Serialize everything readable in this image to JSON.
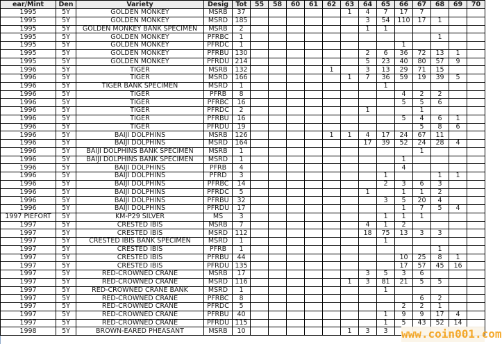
{
  "columns": [
    "ear/Mint",
    "Den",
    "Variety",
    "Desig",
    "Tot",
    "55",
    "58",
    "60",
    "61",
    "62",
    "63",
    "64",
    "65",
    "66",
    "67",
    "68",
    "69",
    "70"
  ],
  "rows": [
    [
      "1995",
      "5Y",
      "GOLDEN MONKEY",
      "MSRB",
      "37",
      [
        "",
        "",
        "",
        "",
        "",
        "1",
        "4",
        "7",
        "17",
        "7",
        "",
        "",
        ""
      ]
    ],
    [
      "1995",
      "5Y",
      "GOLDEN MONKEY",
      "MSRD",
      "185",
      [
        "",
        "",
        "",
        "",
        "",
        "",
        "3",
        "54",
        "110",
        "17",
        "1",
        "",
        ""
      ]
    ],
    [
      "1995",
      "5Y",
      "GOLDEN MONKEY BANK SPECIMEN",
      "MSRB",
      "2",
      [
        "",
        "",
        "",
        "",
        "",
        "",
        "1",
        "1",
        "",
        "",
        "",
        "",
        ""
      ]
    ],
    [
      "1995",
      "5Y",
      "GOLDEN MONKEY",
      "PFRBC",
      "1",
      [
        "",
        "",
        "",
        "",
        "",
        "",
        "",
        "",
        "",
        "",
        "1",
        "",
        ""
      ]
    ],
    [
      "1995",
      "5Y",
      "GOLDEN MONKEY",
      "PFRDC",
      "1",
      [
        "",
        "",
        "",
        "",
        "",
        "",
        "",
        "",
        "1",
        "",
        "",
        "",
        ""
      ]
    ],
    [
      "1995",
      "5Y",
      "GOLDEN MONKEY",
      "PFRBU",
      "130",
      [
        "",
        "",
        "",
        "",
        "",
        "",
        "2",
        "6",
        "36",
        "72",
        "13",
        "1",
        ""
      ]
    ],
    [
      "1995",
      "5Y",
      "GOLDEN MONKEY",
      "PFRDU",
      "214",
      [
        "",
        "",
        "",
        "",
        "",
        "",
        "5",
        "23",
        "40",
        "80",
        "57",
        "9",
        ""
      ]
    ],
    [
      "1996",
      "5Y",
      "TIGER",
      "MSRB",
      "132",
      [
        "",
        "",
        "",
        "",
        "1",
        "",
        "3",
        "13",
        "29",
        "71",
        "15",
        "",
        ""
      ]
    ],
    [
      "1996",
      "5Y",
      "TIGER",
      "MSRD",
      "166",
      [
        "",
        "",
        "",
        "",
        "",
        "1",
        "7",
        "36",
        "59",
        "19",
        "39",
        "5",
        ""
      ]
    ],
    [
      "1996",
      "5Y",
      "TIGER BANK SPECIMEN",
      "MSRD",
      "1",
      [
        "",
        "",
        "",
        "",
        "",
        "",
        "",
        "1",
        "",
        "",
        "",
        "",
        ""
      ]
    ],
    [
      "1996",
      "5Y",
      "TIGER",
      "PFRB",
      "8",
      [
        "",
        "",
        "",
        "",
        "",
        "",
        "",
        "",
        "4",
        "2",
        "2",
        "",
        ""
      ]
    ],
    [
      "1996",
      "5Y",
      "TIGER",
      "PFRBC",
      "16",
      [
        "",
        "",
        "",
        "",
        "",
        "",
        "",
        "",
        "5",
        "5",
        "6",
        "",
        ""
      ]
    ],
    [
      "1996",
      "5Y",
      "TIGER",
      "PFRDC",
      "2",
      [
        "",
        "",
        "",
        "",
        "",
        "",
        "1",
        "",
        "",
        "1",
        "",
        "",
        ""
      ]
    ],
    [
      "1996",
      "5Y",
      "TIGER",
      "PFRBU",
      "16",
      [
        "",
        "",
        "",
        "",
        "",
        "",
        "",
        "",
        "5",
        "4",
        "6",
        "1",
        ""
      ]
    ],
    [
      "1996",
      "5Y",
      "TIGER",
      "PFRDU",
      "19",
      [
        "",
        "",
        "",
        "",
        "",
        "",
        "",
        "",
        "",
        "5",
        "8",
        "6",
        ""
      ]
    ],
    [
      "1996",
      "5Y",
      "BAIJI DOLPHINS",
      "MSRB",
      "126",
      [
        "",
        "",
        "",
        "",
        "1",
        "1",
        "4",
        "17",
        "24",
        "67",
        "11",
        "",
        ""
      ]
    ],
    [
      "1996",
      "5Y",
      "BAIJI DOLPHINS",
      "MSRD",
      "164",
      [
        "",
        "",
        "",
        "",
        "",
        "",
        "17",
        "39",
        "52",
        "24",
        "28",
        "4",
        ""
      ]
    ],
    [
      "1996",
      "5Y",
      "BAIJI DOLPHINS BANK SPECIMEN",
      "MSRB",
      "1",
      [
        "",
        "",
        "",
        "",
        "",
        "",
        "",
        "",
        "",
        "1",
        "",
        "",
        ""
      ]
    ],
    [
      "1996",
      "5Y",
      "BAIJI DOLPHINS BANK SPECIMEN",
      "MSRD",
      "1",
      [
        "",
        "",
        "",
        "",
        "",
        "",
        "",
        "",
        "1",
        "",
        "",
        "",
        ""
      ]
    ],
    [
      "1996",
      "5Y",
      "BAIJI DOLPHINS",
      "PFRB",
      "4",
      [
        "",
        "",
        "",
        "",
        "",
        "",
        "",
        "",
        "4",
        "",
        "",
        "",
        ""
      ]
    ],
    [
      "1996",
      "5Y",
      "BAIJI DOLPHINS",
      "PFRD",
      "3",
      [
        "",
        "",
        "",
        "",
        "",
        "",
        "",
        "1",
        "",
        "",
        "1",
        "1",
        ""
      ]
    ],
    [
      "1996",
      "5Y",
      "BAIJI DOLPHINS",
      "PFRBC",
      "14",
      [
        "",
        "",
        "",
        "",
        "",
        "",
        "",
        "2",
        "3",
        "6",
        "3",
        "",
        ""
      ]
    ],
    [
      "1996",
      "5Y",
      "BAIJI DOLPHINS",
      "PFRDC",
      "5",
      [
        "",
        "",
        "",
        "",
        "",
        "",
        "1",
        "",
        "1",
        "1",
        "2",
        "",
        ""
      ]
    ],
    [
      "1996",
      "5Y",
      "BAIJI DOLPHINS",
      "PFRBU",
      "32",
      [
        "",
        "",
        "",
        "",
        "",
        "",
        "",
        "3",
        "5",
        "20",
        "4",
        "",
        ""
      ]
    ],
    [
      "1996",
      "5Y",
      "BAIJI DOLPHINS",
      "PFRDU",
      "17",
      [
        "",
        "",
        "",
        "",
        "",
        "",
        "",
        "",
        "1",
        "7",
        "5",
        "4",
        ""
      ]
    ],
    [
      "1997 PIEFORT",
      "5Y",
      "KM-P29 SILVER",
      "MS",
      "3",
      [
        "",
        "",
        "",
        "",
        "",
        "",
        "",
        "1",
        "1",
        "1",
        "",
        "",
        ""
      ]
    ],
    [
      "1997",
      "5Y",
      "CRESTED IBIS",
      "MSRB",
      "7",
      [
        "",
        "",
        "",
        "",
        "",
        "",
        "4",
        "1",
        "2",
        "",
        "",
        "",
        ""
      ]
    ],
    [
      "1997",
      "5Y",
      "CRESTED IBIS",
      "MSRD",
      "112",
      [
        "",
        "",
        "",
        "",
        "",
        "",
        "18",
        "75",
        "13",
        "3",
        "3",
        "",
        ""
      ]
    ],
    [
      "1997",
      "5Y",
      "CRESTED IBIS BANK SPECIMEN",
      "MSRD",
      "1",
      [
        "",
        "",
        "",
        "",
        "",
        "",
        "",
        "1",
        "",
        "",
        "",
        "",
        ""
      ]
    ],
    [
      "1997",
      "5Y",
      "CRESTED IBIS",
      "PFRB",
      "1",
      [
        "",
        "",
        "",
        "",
        "",
        "",
        "",
        "",
        "",
        "",
        "1",
        "",
        ""
      ]
    ],
    [
      "1997",
      "5Y",
      "CRESTED IBIS",
      "PFRBU",
      "44",
      [
        "",
        "",
        "",
        "",
        "",
        "",
        "",
        "",
        "10",
        "25",
        "8",
        "1",
        ""
      ]
    ],
    [
      "1997",
      "5Y",
      "CRESTED IBIS",
      "PFRDU",
      "135",
      [
        "",
        "",
        "",
        "",
        "",
        "",
        "",
        "",
        "17",
        "57",
        "45",
        "16",
        ""
      ]
    ],
    [
      "1997",
      "5Y",
      "RED-CROWNED CRANE",
      "MSRB",
      "17",
      [
        "",
        "",
        "",
        "",
        "",
        "",
        "3",
        "5",
        "3",
        "6",
        "",
        "",
        ""
      ]
    ],
    [
      "1997",
      "5Y",
      "RED-CROWNED CRANE",
      "MSRD",
      "116",
      [
        "",
        "",
        "",
        "",
        "",
        "1",
        "3",
        "81",
        "21",
        "5",
        "5",
        "",
        ""
      ]
    ],
    [
      "1997",
      "5Y",
      "RED-CROWNED CRANE BANK",
      "MSRD",
      "1",
      [
        "",
        "",
        "",
        "",
        "",
        "",
        "",
        "1",
        "",
        "",
        "",
        "",
        ""
      ]
    ],
    [
      "1997",
      "5Y",
      "RED-CROWNED CRANE",
      "PFRBC",
      "8",
      [
        "",
        "",
        "",
        "",
        "",
        "",
        "",
        "",
        "",
        "6",
        "2",
        "",
        ""
      ]
    ],
    [
      "1997",
      "5Y",
      "RED-CROWNED CRANE",
      "PFRDC",
      "5",
      [
        "",
        "",
        "",
        "",
        "",
        "",
        "",
        "",
        "2",
        "2",
        "1",
        "",
        ""
      ]
    ],
    [
      "1997",
      "5Y",
      "RED-CROWNED CRANE",
      "PFRBU",
      "40",
      [
        "",
        "",
        "",
        "",
        "",
        "",
        "",
        "1",
        "9",
        "9",
        "17",
        "4",
        ""
      ]
    ],
    [
      "1997",
      "5Y",
      "RED-CROWNED CRANE",
      "PFRDU",
      "115",
      [
        "",
        "",
        "",
        "",
        "",
        "",
        "",
        "1",
        "5",
        "43",
        "52",
        "14",
        ""
      ]
    ],
    [
      "1998",
      "5Y",
      "BROWN-EARED PHEASANT",
      "MSRB",
      "10",
      [
        "",
        "",
        "",
        "",
        "",
        "1",
        "3",
        "3",
        "",
        "",
        "",
        "",
        ""
      ]
    ]
  ],
  "watermark": "www.coin001.com"
}
